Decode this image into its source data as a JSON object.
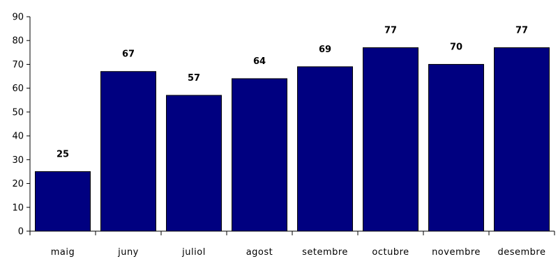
{
  "chart_data": {
    "type": "bar",
    "categories": [
      "maig",
      "juny",
      "juliol",
      "agost",
      "setembre",
      "octubre",
      "novembre",
      "desembre"
    ],
    "values": [
      25,
      67,
      57,
      64,
      69,
      77,
      70,
      77
    ],
    "ylim": [
      0,
      90
    ],
    "yticks": [
      0,
      10,
      20,
      30,
      40,
      50,
      60,
      70,
      80,
      90
    ],
    "bar_color": "#000080",
    "grid": false,
    "data_labels": true
  }
}
